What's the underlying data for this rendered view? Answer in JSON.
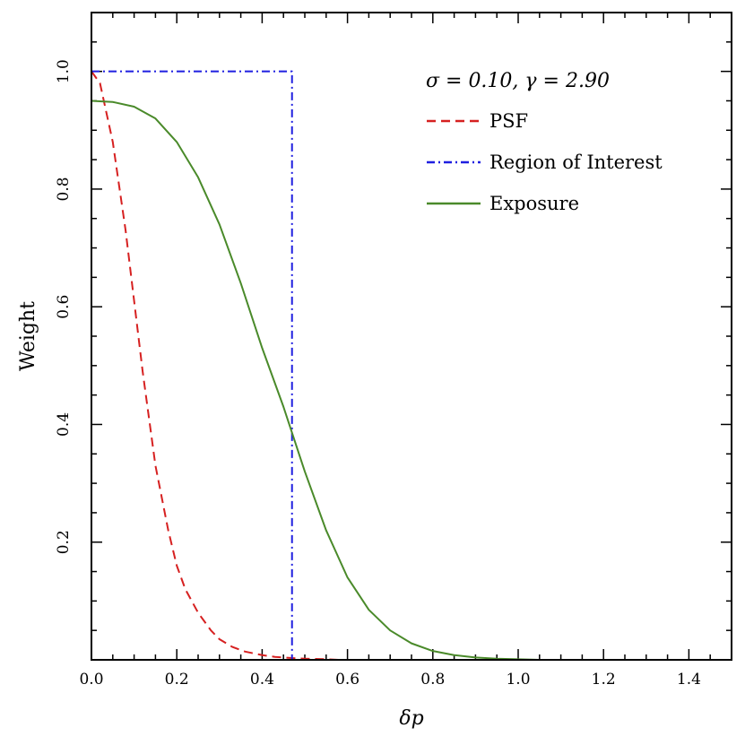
{
  "chart_data": {
    "type": "line",
    "title": "",
    "xlabel": "δp",
    "ylabel": "Weight",
    "xlim": [
      0.0,
      1.5
    ],
    "ylim": [
      0.0,
      1.1
    ],
    "grid": false,
    "legend_position": "top-right",
    "legend_title": "σ = 0.10, γ = 2.90",
    "x_tick_labels": [
      "0.0",
      "0.2",
      "0.4",
      "0.6",
      "0.8",
      "1.0",
      "1.2",
      "1.4"
    ],
    "y_tick_labels": [
      "0.2",
      "0.4",
      "0.6",
      "0.8",
      "1.0"
    ],
    "series": [
      {
        "name": "PSF",
        "color": "#d62020",
        "style": "dashed",
        "x": [
          0.0,
          0.02,
          0.05,
          0.08,
          0.1,
          0.12,
          0.15,
          0.18,
          0.2,
          0.22,
          0.25,
          0.28,
          0.3,
          0.33,
          0.36,
          0.4,
          0.43,
          0.47,
          0.5,
          0.55,
          0.58
        ],
        "y": [
          1.0,
          0.98,
          0.88,
          0.73,
          0.61,
          0.49,
          0.33,
          0.22,
          0.16,
          0.12,
          0.08,
          0.05,
          0.035,
          0.022,
          0.014,
          0.008,
          0.005,
          0.003,
          0.002,
          0.001,
          0.0
        ]
      },
      {
        "name": "Region of Interest",
        "color": "#1f1fe0",
        "style": "dashdot",
        "x": [
          0.0,
          0.47,
          0.47
        ],
        "y": [
          1.0,
          1.0,
          0.0
        ]
      },
      {
        "name": "Exposure",
        "color": "#4a8a2a",
        "style": "solid",
        "x": [
          0.0,
          0.05,
          0.1,
          0.15,
          0.2,
          0.25,
          0.3,
          0.35,
          0.4,
          0.45,
          0.5,
          0.55,
          0.6,
          0.65,
          0.7,
          0.75,
          0.8,
          0.85,
          0.9,
          0.95,
          1.0,
          1.05
        ],
        "y": [
          0.95,
          0.948,
          0.94,
          0.92,
          0.88,
          0.82,
          0.74,
          0.64,
          0.53,
          0.43,
          0.32,
          0.22,
          0.14,
          0.085,
          0.05,
          0.028,
          0.015,
          0.008,
          0.004,
          0.002,
          0.001,
          0.0
        ]
      }
    ]
  }
}
